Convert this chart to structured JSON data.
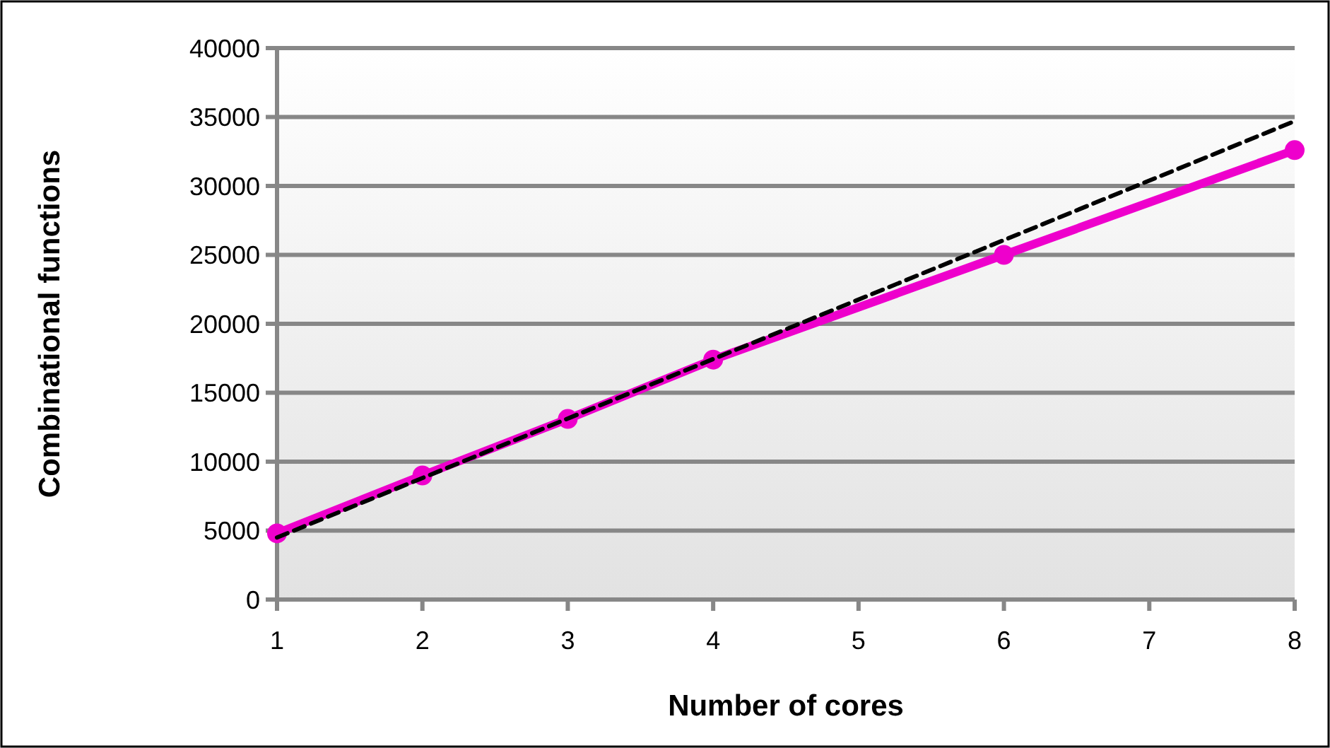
{
  "chart_data": {
    "type": "line",
    "xlabel": "Number of cores",
    "ylabel": "Combinational functions",
    "x": [
      1,
      2,
      3,
      4,
      6,
      8
    ],
    "series": [
      {
        "color": "#ee00cc",
        "values": [
          4800,
          9000,
          13100,
          17400,
          25000,
          32600
        ],
        "marker": "circle",
        "line_style": "solid"
      },
      {
        "color": "#000000",
        "x": [
          1,
          8
        ],
        "values": [
          4500,
          34700
        ],
        "marker": "none",
        "line_style": "dashed"
      }
    ],
    "xlim": [
      1,
      8
    ],
    "xticks": [
      1,
      2,
      3,
      4,
      5,
      6,
      7,
      8
    ],
    "ylim": [
      0,
      40000
    ],
    "yticks": [
      0,
      5000,
      10000,
      15000,
      20000,
      25000,
      30000,
      35000,
      40000
    ],
    "grid": "y"
  }
}
